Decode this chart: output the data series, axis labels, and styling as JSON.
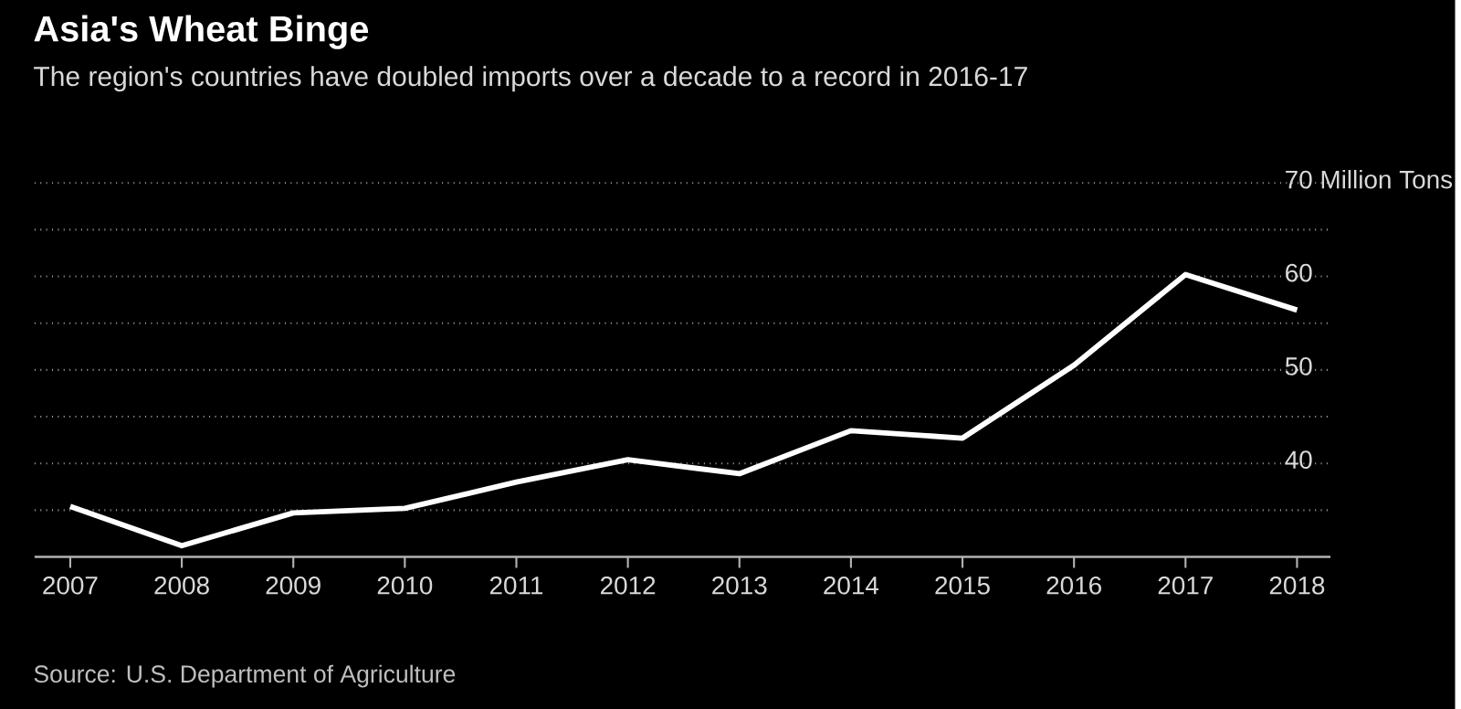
{
  "chart_data": {
    "type": "line",
    "title": "Asia's Wheat Binge",
    "subtitle": "The region's countries have doubled imports over a decade to a record in 2016-17",
    "categories": [
      "2007",
      "2008",
      "2009",
      "2010",
      "2011",
      "2012",
      "2013",
      "2014",
      "2015",
      "2016",
      "2017",
      "2018"
    ],
    "series": [
      {
        "color": "#ffffff",
        "values": [
          35.4,
          31.2,
          34.7,
          35.2,
          38.0,
          40.4,
          38.9,
          43.5,
          42.7,
          50.5,
          60.2,
          56.4
        ]
      }
    ],
    "ylim": [
      30,
      70
    ],
    "yticks": [
      {
        "value": 35,
        "label": null
      },
      40,
      {
        "value": 45,
        "label": null
      },
      50,
      {
        "value": 55,
        "label": null
      },
      60,
      {
        "value": 65,
        "label": null
      },
      {
        "value": 70,
        "label": "70 Million Tons"
      }
    ],
    "grid": "y",
    "marker": "none",
    "line_style": "solid",
    "annotations": [
      "Source: U.S. Department of Agriculture"
    ]
  }
}
